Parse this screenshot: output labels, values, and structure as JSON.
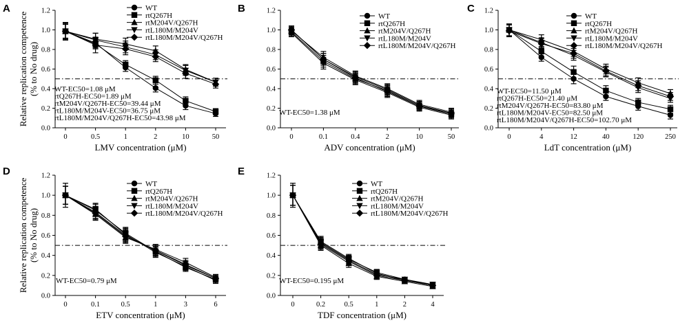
{
  "chart_data": [
    {
      "type": "line",
      "panel": "A",
      "x": [
        "0",
        "0.5",
        "1",
        "2",
        "10",
        "50"
      ],
      "xlabel": "LMV concentration (μM)",
      "ylabel": [
        "Relative replication competence",
        "(% to No drug)"
      ],
      "ylim": [
        0,
        1.2
      ],
      "yticks": [
        "0.0",
        "0.2",
        "0.4",
        "0.6",
        "0.8",
        "1.0",
        "1.2"
      ],
      "threshold": 0.5,
      "legend_position": "top-right",
      "series": [
        {
          "name": "WT",
          "marker": "circle",
          "values": [
            1.0,
            0.88,
            0.63,
            0.42,
            0.24,
            0.16
          ],
          "err": [
            0.08,
            0.05,
            0.04,
            0.04,
            0.04,
            0.03
          ]
        },
        {
          "name": "rtQ267H",
          "marker": "square",
          "values": [
            1.0,
            0.87,
            0.66,
            0.5,
            0.29,
            0.18
          ],
          "err": [
            0.07,
            0.05,
            0.04,
            0.04,
            0.04,
            0.03
          ]
        },
        {
          "name": "rtM204V/Q267H",
          "marker": "triangle-up",
          "values": [
            1.0,
            0.92,
            0.87,
            0.8,
            0.61,
            0.48
          ],
          "err": [
            0.08,
            0.06,
            0.06,
            0.05,
            0.05,
            0.04
          ]
        },
        {
          "name": "rtL180M/M204V",
          "marker": "triangle-down",
          "values": [
            1.0,
            0.91,
            0.84,
            0.76,
            0.6,
            0.48
          ],
          "err": [
            0.09,
            0.07,
            0.06,
            0.05,
            0.05,
            0.04
          ]
        },
        {
          "name": "rtL180M/M204V/Q267H",
          "marker": "diamond",
          "values": [
            1.0,
            0.86,
            0.82,
            0.74,
            0.57,
            0.46
          ],
          "err": [
            0.09,
            0.08,
            0.06,
            0.05,
            0.05,
            0.04
          ]
        }
      ],
      "annotations": [
        "WT-EC50=1.08 μM",
        "rtQ267H-EC50=1.89 μM",
        "rtM204V/Q267H-EC50=39.44 μM",
        "rtL180M/M204V-EC50=36.75 μM",
        "rtL180M/M204V/Q267H-EC50=43.98 μM"
      ]
    },
    {
      "type": "line",
      "panel": "B",
      "x": [
        "0",
        "0.1",
        "0.4",
        "2",
        "10",
        "50"
      ],
      "xlabel": "ADV concentration (μM)",
      "ylabel": [],
      "ylim": [
        0,
        1.2
      ],
      "yticks": [
        "0.0",
        "0.2",
        "0.4",
        "0.6",
        "0.8",
        "1.0",
        "1.2"
      ],
      "threshold": 0.5,
      "legend_position": "top-right",
      "series": [
        {
          "name": "WT",
          "marker": "circle",
          "values": [
            1.0,
            0.7,
            0.52,
            0.39,
            0.23,
            0.15
          ],
          "err": [
            0.04,
            0.06,
            0.05,
            0.05,
            0.04,
            0.04
          ]
        },
        {
          "name": "rtQ267H",
          "marker": "square",
          "values": [
            0.98,
            0.68,
            0.5,
            0.38,
            0.22,
            0.14
          ],
          "err": [
            0.04,
            0.06,
            0.05,
            0.05,
            0.04,
            0.04
          ]
        },
        {
          "name": "rtM204V/Q267H",
          "marker": "triangle-up",
          "values": [
            0.99,
            0.72,
            0.53,
            0.4,
            0.24,
            0.16
          ],
          "err": [
            0.04,
            0.06,
            0.05,
            0.05,
            0.04,
            0.04
          ]
        },
        {
          "name": "rtL180M/M204V",
          "marker": "triangle-down",
          "values": [
            0.97,
            0.66,
            0.49,
            0.36,
            0.21,
            0.13
          ],
          "err": [
            0.04,
            0.06,
            0.05,
            0.05,
            0.04,
            0.04
          ]
        },
        {
          "name": "rtL180M/M204V/Q267H",
          "marker": "diamond",
          "values": [
            1.0,
            0.7,
            0.51,
            0.37,
            0.22,
            0.15
          ],
          "err": [
            0.04,
            0.06,
            0.05,
            0.05,
            0.04,
            0.04
          ]
        }
      ],
      "annotations": [
        "WT-EC50=1.38 μM"
      ]
    },
    {
      "type": "line",
      "panel": "C",
      "x": [
        "0",
        "4",
        "12",
        "40",
        "120",
        "250"
      ],
      "xlabel": "LdT concentration (μM)",
      "ylabel": [],
      "ylim": [
        0,
        1.2
      ],
      "yticks": [
        "0.0",
        "0.2",
        "0.4",
        "0.6",
        "0.8",
        "1.0",
        "1.2"
      ],
      "threshold": 0.5,
      "legend_position": "top-right",
      "series": [
        {
          "name": "WT",
          "marker": "circle",
          "values": [
            1.0,
            0.72,
            0.5,
            0.32,
            0.22,
            0.13
          ],
          "err": [
            0.06,
            0.04,
            0.05,
            0.04,
            0.04,
            0.04
          ]
        },
        {
          "name": "rtQ267H",
          "marker": "square",
          "values": [
            1.0,
            0.78,
            0.57,
            0.38,
            0.26,
            0.19
          ],
          "err": [
            0.06,
            0.05,
            0.06,
            0.05,
            0.04,
            0.04
          ]
        },
        {
          "name": "rtM204V/Q267H",
          "marker": "triangle-up",
          "values": [
            1.0,
            0.9,
            0.78,
            0.6,
            0.46,
            0.35
          ],
          "err": [
            0.06,
            0.05,
            0.05,
            0.05,
            0.05,
            0.04
          ]
        },
        {
          "name": "rtL180M/M204V",
          "marker": "triangle-down",
          "values": [
            1.0,
            0.87,
            0.74,
            0.57,
            0.41,
            0.3
          ],
          "err": [
            0.06,
            0.05,
            0.05,
            0.05,
            0.05,
            0.04
          ]
        },
        {
          "name": "rtL180M/M204V/Q267H",
          "marker": "diamond",
          "values": [
            0.99,
            0.86,
            0.76,
            0.58,
            0.43,
            0.32
          ],
          "err": [
            0.06,
            0.05,
            0.05,
            0.05,
            0.05,
            0.04
          ]
        }
      ],
      "annotations": [
        "WT-EC50=11.50 μM",
        "rtQ267H-EC50=21.40 μM",
        "rtM204V/Q267H-EC50=83.80 μM",
        "rtL180M/M204V-EC50=82.50 μM",
        "rtL180M/M204V/Q267H-EC50=102.70 μM"
      ]
    },
    {
      "type": "line",
      "panel": "D",
      "x": [
        "0",
        "0.1",
        "0.5",
        "1",
        "3",
        "6"
      ],
      "xlabel": "ETV concentration (μM)",
      "ylabel": [
        "Relative replication competence",
        "(% to No drug)"
      ],
      "ylim": [
        0,
        1.2
      ],
      "yticks": [
        "0.0",
        "0.2",
        "0.4",
        "0.6",
        "0.8",
        "1.0",
        "1.2"
      ],
      "threshold": 0.5,
      "legend_position": "top-right",
      "series": [
        {
          "name": "WT",
          "marker": "circle",
          "values": [
            1.0,
            0.83,
            0.6,
            0.45,
            0.3,
            0.17
          ],
          "err": [
            0.12,
            0.06,
            0.06,
            0.05,
            0.04,
            0.03
          ]
        },
        {
          "name": "rtQ267H",
          "marker": "square",
          "values": [
            1.0,
            0.85,
            0.62,
            0.44,
            0.28,
            0.16
          ],
          "err": [
            0.09,
            0.06,
            0.06,
            0.05,
            0.04,
            0.03
          ]
        },
        {
          "name": "rtM204V/Q267H",
          "marker": "triangle-up",
          "values": [
            1.0,
            0.81,
            0.58,
            0.46,
            0.33,
            0.18
          ],
          "err": [
            0.09,
            0.06,
            0.06,
            0.05,
            0.04,
            0.03
          ]
        },
        {
          "name": "rtL180M/M204V",
          "marker": "triangle-down",
          "values": [
            1.0,
            0.86,
            0.61,
            0.43,
            0.29,
            0.15
          ],
          "err": [
            0.09,
            0.06,
            0.06,
            0.05,
            0.04,
            0.03
          ]
        },
        {
          "name": "rtL180M/M204V/Q267H",
          "marker": "diamond",
          "values": [
            1.0,
            0.82,
            0.59,
            0.45,
            0.31,
            0.17
          ],
          "err": [
            0.09,
            0.06,
            0.06,
            0.05,
            0.04,
            0.03
          ]
        }
      ],
      "annotations": [
        "WT-EC50=0.79 μM"
      ]
    },
    {
      "type": "line",
      "panel": "E",
      "x": [
        "0",
        "0.2",
        "0.5",
        "1",
        "2",
        "4"
      ],
      "xlabel": "TDF concentration (μM)",
      "ylabel": [],
      "ylim": [
        0,
        1.2
      ],
      "yticks": [
        "0.0",
        "0.2",
        "0.4",
        "0.6",
        "0.8",
        "1.0",
        "1.2"
      ],
      "threshold": 0.5,
      "legend_position": "top-right",
      "series": [
        {
          "name": "WT",
          "marker": "circle",
          "values": [
            1.0,
            0.52,
            0.35,
            0.21,
            0.16,
            0.1
          ],
          "err": [
            0.12,
            0.05,
            0.04,
            0.03,
            0.02,
            0.02
          ]
        },
        {
          "name": "rtQ267H",
          "marker": "square",
          "values": [
            1.0,
            0.54,
            0.37,
            0.22,
            0.15,
            0.1
          ],
          "err": [
            0.1,
            0.05,
            0.04,
            0.03,
            0.02,
            0.02
          ]
        },
        {
          "name": "rtM204V/Q267H",
          "marker": "triangle-up",
          "values": [
            1.0,
            0.5,
            0.32,
            0.19,
            0.14,
            0.09
          ],
          "err": [
            0.1,
            0.05,
            0.04,
            0.03,
            0.02,
            0.02
          ]
        },
        {
          "name": "rtL180M/M204V",
          "marker": "triangle-down",
          "values": [
            1.0,
            0.53,
            0.36,
            0.23,
            0.16,
            0.11
          ],
          "err": [
            0.1,
            0.05,
            0.04,
            0.03,
            0.02,
            0.02
          ]
        },
        {
          "name": "rtL180M/M204V/Q267H",
          "marker": "diamond",
          "values": [
            1.0,
            0.51,
            0.34,
            0.2,
            0.15,
            0.1
          ],
          "err": [
            0.1,
            0.05,
            0.04,
            0.03,
            0.02,
            0.02
          ]
        }
      ],
      "annotations": [
        "WT-EC50=0.195 μM"
      ]
    }
  ]
}
